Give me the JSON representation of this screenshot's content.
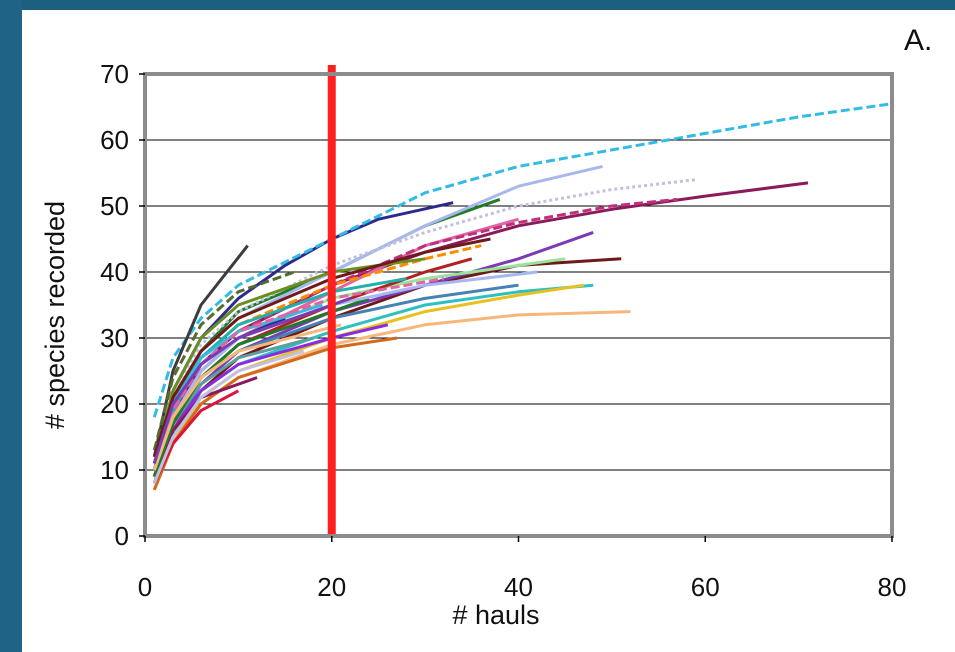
{
  "chart_data": {
    "type": "line",
    "panel_label": "A.",
    "xlabel": "# hauls",
    "ylabel": "# species recorded",
    "xlim": [
      0,
      80
    ],
    "ylim": [
      0,
      70
    ],
    "x_ticks": [
      "0",
      "20",
      "40",
      "60",
      "80"
    ],
    "y_ticks": [
      "0",
      "10",
      "20",
      "30",
      "40",
      "50",
      "60",
      "70"
    ],
    "grid": "horizontal",
    "legend": "none",
    "reference_line": {
      "x": 20,
      "color": "#ff1f1f"
    },
    "colors": [
      "#2b2b8f",
      "#8b1a5c",
      "#33bbe6",
      "#1f7d2a",
      "#e066a3",
      "#a8b8ee",
      "#6e1a1a",
      "#f5b87a",
      "#c0c0e0",
      "#7a3bb5",
      "#2ec0c0",
      "#e8c020",
      "#c0307a",
      "#3c3c3c",
      "#9be39b",
      "#ff8c00",
      "#4682b4",
      "#b22222",
      "#6b8e23",
      "#20b2aa",
      "#8a2be2",
      "#d2691e",
      "#5f9ea0",
      "#dc143c",
      "#556b2f"
    ],
    "series": [
      {
        "x": [
          1,
          3,
          6,
          10,
          15,
          20,
          25,
          33
        ],
        "y": [
          10,
          22,
          30,
          36,
          41,
          45,
          48,
          50.5
        ],
        "style": "solid"
      },
      {
        "x": [
          1,
          3,
          6,
          10,
          20,
          30,
          40,
          50,
          60,
          71
        ],
        "y": [
          9,
          18,
          26,
          31,
          38,
          43,
          47,
          49.5,
          51.5,
          53.5
        ],
        "style": "solid"
      },
      {
        "x": [
          1,
          3,
          6,
          10,
          20,
          30,
          40,
          50,
          60,
          70,
          80
        ],
        "y": [
          18,
          27,
          33,
          38,
          45,
          52,
          56,
          58.5,
          61,
          63.5,
          65.5
        ],
        "style": "dashed"
      },
      {
        "x": [
          1,
          3,
          6,
          10,
          20,
          30,
          38
        ],
        "y": [
          10,
          20,
          28,
          34,
          40,
          47,
          51
        ],
        "style": "solid"
      },
      {
        "x": [
          1,
          3,
          6,
          10,
          20,
          30,
          40
        ],
        "y": [
          9,
          17,
          25,
          30,
          37,
          44,
          48
        ],
        "style": "solid"
      },
      {
        "x": [
          1,
          3,
          6,
          10,
          20,
          30,
          40,
          49
        ],
        "y": [
          11,
          21,
          28,
          33,
          40,
          47,
          53,
          56
        ],
        "style": "solid"
      },
      {
        "x": [
          1,
          3,
          6,
          10,
          20,
          30,
          40,
          51
        ],
        "y": [
          8,
          15,
          22,
          27,
          33,
          38,
          41,
          42
        ],
        "style": "solid"
      },
      {
        "x": [
          1,
          3,
          6,
          10,
          20,
          30,
          40,
          52
        ],
        "y": [
          7,
          14,
          20,
          24,
          29,
          32,
          33.5,
          34
        ],
        "style": "solid"
      },
      {
        "x": [
          1,
          3,
          6,
          10,
          20,
          30,
          40,
          50,
          59
        ],
        "y": [
          12,
          22,
          29,
          34,
          41,
          46,
          50,
          52.5,
          54
        ],
        "style": "dotted"
      },
      {
        "x": [
          1,
          3,
          6,
          10,
          20,
          30,
          40,
          48
        ],
        "y": [
          8,
          16,
          23,
          28,
          34,
          38,
          42,
          46
        ],
        "style": "solid"
      },
      {
        "x": [
          1,
          3,
          6,
          10,
          20,
          30,
          40,
          48
        ],
        "y": [
          9,
          15,
          22,
          26,
          31,
          35,
          37,
          38
        ],
        "style": "solid"
      },
      {
        "x": [
          1,
          3,
          6,
          10,
          20,
          30,
          40,
          47
        ],
        "y": [
          8,
          14,
          21,
          25,
          30,
          34,
          36.5,
          38
        ],
        "style": "solid"
      },
      {
        "x": [
          1,
          3,
          6,
          10,
          20,
          30,
          40,
          50,
          57
        ],
        "y": [
          10,
          19,
          26,
          31,
          38,
          44,
          47.5,
          50,
          51
        ],
        "style": "dashed"
      },
      {
        "x": [
          1,
          3,
          6,
          11
        ],
        "y": [
          12,
          25,
          35,
          44
        ],
        "style": "solid"
      },
      {
        "x": [
          1,
          3,
          6,
          10,
          20,
          30,
          40,
          45
        ],
        "y": [
          10,
          18,
          25,
          30,
          36,
          39,
          41,
          42
        ],
        "style": "solid"
      },
      {
        "x": [
          1,
          3,
          6,
          10,
          20,
          30,
          36
        ],
        "y": [
          11,
          20,
          27,
          32,
          38,
          42,
          44
        ],
        "style": "dashed"
      },
      {
        "x": [
          1,
          3,
          6,
          10,
          20,
          30,
          40
        ],
        "y": [
          10,
          18,
          24,
          28,
          33,
          36,
          38
        ],
        "style": "solid"
      },
      {
        "x": [
          1,
          3,
          6,
          10,
          20,
          30,
          35
        ],
        "y": [
          9,
          17,
          24,
          29,
          35,
          40,
          42
        ],
        "style": "solid"
      },
      {
        "x": [
          1,
          3,
          6,
          10,
          20,
          30
        ],
        "y": [
          11,
          22,
          30,
          35,
          40,
          42
        ],
        "style": "solid"
      },
      {
        "x": [
          1,
          3,
          6,
          10,
          20,
          28
        ],
        "y": [
          10,
          19,
          27,
          32,
          37,
          39
        ],
        "style": "solid"
      },
      {
        "x": [
          1,
          3,
          6,
          10,
          20,
          26
        ],
        "y": [
          8,
          16,
          22,
          26,
          30,
          32
        ],
        "style": "solid"
      },
      {
        "x": [
          1,
          3,
          6,
          10,
          20,
          27
        ],
        "y": [
          7,
          14,
          20,
          24,
          28.5,
          30
        ],
        "style": "solid"
      },
      {
        "x": [
          1,
          3,
          6,
          10,
          18
        ],
        "y": [
          9,
          17,
          23,
          27,
          30
        ],
        "style": "solid"
      },
      {
        "x": [
          1,
          3,
          6,
          10
        ],
        "y": [
          8,
          14,
          19,
          22
        ],
        "style": "solid"
      },
      {
        "x": [
          1,
          3,
          6,
          10,
          16
        ],
        "y": [
          13,
          24,
          32,
          37,
          40
        ],
        "style": "dashed"
      },
      {
        "x": [
          1,
          3,
          6,
          10,
          15
        ],
        "y": [
          10,
          18,
          25,
          30,
          33
        ],
        "style": "solid"
      },
      {
        "x": [
          1,
          3,
          6,
          12
        ],
        "y": [
          9,
          16,
          21,
          24
        ],
        "style": "solid"
      },
      {
        "x": [
          1,
          3,
          6,
          10,
          19
        ],
        "y": [
          11,
          20,
          27,
          31,
          35
        ],
        "style": "solid"
      },
      {
        "x": [
          1,
          3,
          6,
          10,
          20,
          24
        ],
        "y": [
          9,
          17,
          24,
          29,
          34,
          36
        ],
        "style": "solid"
      },
      {
        "x": [
          1,
          3,
          6,
          10,
          20,
          32
        ],
        "y": [
          10,
          19,
          26,
          31,
          36,
          39
        ],
        "style": "dashed"
      },
      {
        "x": [
          1,
          3,
          6,
          10,
          20,
          30,
          42
        ],
        "y": [
          10,
          18,
          25,
          30,
          35,
          38,
          40
        ],
        "style": "solid"
      },
      {
        "x": [
          1,
          3,
          6,
          10,
          20,
          30,
          37
        ],
        "y": [
          12,
          21,
          28,
          33,
          39,
          43,
          45
        ],
        "style": "solid"
      },
      {
        "x": [
          1,
          3,
          6,
          10,
          21
        ],
        "y": [
          10,
          18,
          24,
          28,
          32
        ],
        "style": "solid"
      },
      {
        "x": [
          1,
          3,
          6,
          10,
          17
        ],
        "y": [
          8,
          15,
          21,
          25,
          28
        ],
        "style": "solid"
      },
      {
        "x": [
          1,
          3,
          6,
          10,
          22
        ],
        "y": [
          11,
          20,
          26,
          30,
          36
        ],
        "style": "solid"
      }
    ]
  }
}
